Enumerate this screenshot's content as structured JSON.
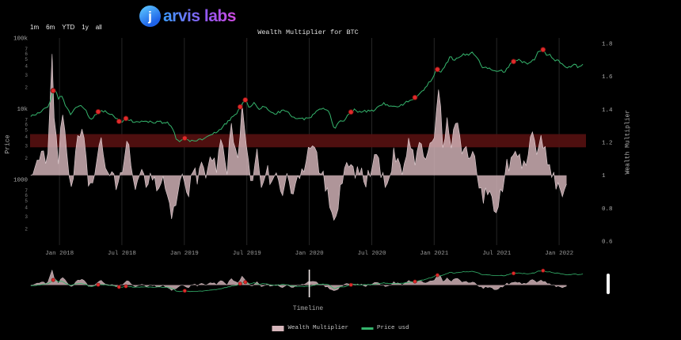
{
  "brand": {
    "mark": "j",
    "name": "arvis labs"
  },
  "toolbar": {
    "ranges": [
      "1m",
      "6m",
      "YTD",
      "1y",
      "all"
    ]
  },
  "chart_data": {
    "type": "line",
    "title": "Wealth Multiplier for BTC",
    "timeline_label": "Timeline",
    "x_domain": [
      2017.765,
      2022.215
    ],
    "x_ticks": [
      {
        "t": 2018.0,
        "label": "Jan 2018"
      },
      {
        "t": 2018.5,
        "label": "Jul 2018"
      },
      {
        "t": 2019.0,
        "label": "Jan 2019"
      },
      {
        "t": 2019.5,
        "label": "Jul 2019"
      },
      {
        "t": 2020.0,
        "label": "Jan 2020"
      },
      {
        "t": 2020.5,
        "label": "Jul 2020"
      },
      {
        "t": 2021.0,
        "label": "Jan 2021"
      },
      {
        "t": 2021.5,
        "label": "Jul 2021"
      },
      {
        "t": 2022.0,
        "label": "Jan 2022"
      }
    ],
    "left_axis": {
      "label": "Price",
      "scale": "log",
      "majors": [
        {
          "v": 100000,
          "label": "100k"
        },
        {
          "v": 10000,
          "label": "10k"
        },
        {
          "v": 1000,
          "label": "1000"
        }
      ],
      "minor_multipliers": [
        8,
        7,
        6,
        5,
        4,
        3,
        2
      ]
    },
    "right_axis": {
      "label": "Wealth Multiplier",
      "ticks": [
        1.8,
        1.6,
        1.4,
        1.2,
        1,
        0.8,
        0.6
      ]
    },
    "threshold_band": {
      "axis": "right",
      "from": 1.17,
      "to": 1.25,
      "color": "#521010"
    },
    "navigator": {
      "marker_t": 2020.0
    },
    "signals": {
      "color": "#df2b2b",
      "times": [
        2017.95,
        2018.31,
        2018.48,
        2018.53,
        2019.0,
        2019.45,
        2019.49,
        2020.33,
        2020.84,
        2021.02,
        2021.63,
        2021.87
      ]
    },
    "series": [
      {
        "name": "Wealth Multiplier",
        "axis": "right",
        "type": "area",
        "baseline": 1,
        "color": "#d6b6bb",
        "points": [
          [
            2017.77,
            1.0
          ],
          [
            2017.82,
            1.06
          ],
          [
            2017.87,
            1.02
          ],
          [
            2017.91,
            1.14
          ],
          [
            2017.94,
            1.74
          ],
          [
            2017.96,
            1.32
          ],
          [
            2017.99,
            1.14
          ],
          [
            2018.03,
            1.35
          ],
          [
            2018.06,
            1.1
          ],
          [
            2018.1,
            0.92
          ],
          [
            2018.14,
            1.18
          ],
          [
            2018.18,
            1.3
          ],
          [
            2018.22,
            1.02
          ],
          [
            2018.26,
            0.9
          ],
          [
            2018.3,
            1.12
          ],
          [
            2018.34,
            1.25
          ],
          [
            2018.38,
            0.96
          ],
          [
            2018.42,
            1.06
          ],
          [
            2018.46,
            0.9
          ],
          [
            2018.5,
            1.0
          ],
          [
            2018.54,
            1.26
          ],
          [
            2018.58,
            0.97
          ],
          [
            2018.62,
            0.92
          ],
          [
            2018.66,
            1.08
          ],
          [
            2018.7,
            0.95
          ],
          [
            2018.74,
            1.02
          ],
          [
            2018.78,
            0.94
          ],
          [
            2018.82,
            1.0
          ],
          [
            2018.86,
            0.88
          ],
          [
            2018.9,
            0.76
          ],
          [
            2018.94,
            0.85
          ],
          [
            2018.98,
            1.0
          ],
          [
            2019.02,
            0.92
          ],
          [
            2019.06,
            1.08
          ],
          [
            2019.1,
            0.97
          ],
          [
            2019.14,
            1.1
          ],
          [
            2019.18,
            1.0
          ],
          [
            2019.22,
            1.14
          ],
          [
            2019.26,
            1.03
          ],
          [
            2019.3,
            1.24
          ],
          [
            2019.34,
            1.0
          ],
          [
            2019.38,
            1.34
          ],
          [
            2019.42,
            1.06
          ],
          [
            2019.46,
            1.4
          ],
          [
            2019.5,
            1.12
          ],
          [
            2019.54,
            0.96
          ],
          [
            2019.58,
            1.18
          ],
          [
            2019.62,
            0.94
          ],
          [
            2019.66,
            1.08
          ],
          [
            2019.7,
            0.92
          ],
          [
            2019.74,
            1.0
          ],
          [
            2019.78,
            0.9
          ],
          [
            2019.82,
            1.0
          ],
          [
            2019.86,
            0.9
          ],
          [
            2019.9,
            0.97
          ],
          [
            2019.94,
            1.02
          ],
          [
            2019.98,
            1.08
          ],
          [
            2020.02,
            1.24
          ],
          [
            2020.06,
            1.1
          ],
          [
            2020.1,
            1.02
          ],
          [
            2020.14,
            0.92
          ],
          [
            2020.18,
            0.8
          ],
          [
            2020.21,
            0.7
          ],
          [
            2020.25,
            0.95
          ],
          [
            2020.29,
            1.04
          ],
          [
            2020.33,
            1.12
          ],
          [
            2020.37,
            0.98
          ],
          [
            2020.41,
            1.06
          ],
          [
            2020.45,
            0.96
          ],
          [
            2020.49,
            1.02
          ],
          [
            2020.53,
            1.2
          ],
          [
            2020.57,
            1.04
          ],
          [
            2020.61,
            0.96
          ],
          [
            2020.65,
            1.02
          ],
          [
            2020.69,
            1.1
          ],
          [
            2020.73,
            1.02
          ],
          [
            2020.77,
            1.14
          ],
          [
            2020.81,
            1.2
          ],
          [
            2020.85,
            1.06
          ],
          [
            2020.89,
            1.22
          ],
          [
            2020.93,
            1.1
          ],
          [
            2020.97,
            1.2
          ],
          [
            2021.01,
            1.3
          ],
          [
            2021.04,
            1.52
          ],
          [
            2021.07,
            1.18
          ],
          [
            2021.1,
            1.34
          ],
          [
            2021.13,
            1.12
          ],
          [
            2021.16,
            1.26
          ],
          [
            2021.19,
            1.34
          ],
          [
            2021.22,
            1.12
          ],
          [
            2021.25,
            1.22
          ],
          [
            2021.28,
            1.1
          ],
          [
            2021.31,
            1.2
          ],
          [
            2021.34,
            0.98
          ],
          [
            2021.38,
            0.88
          ],
          [
            2021.42,
            0.94
          ],
          [
            2021.46,
            0.86
          ],
          [
            2021.5,
            0.8
          ],
          [
            2021.54,
            0.92
          ],
          [
            2021.58,
            1.02
          ],
          [
            2021.62,
            1.12
          ],
          [
            2021.66,
            1.18
          ],
          [
            2021.7,
            1.02
          ],
          [
            2021.74,
            1.1
          ],
          [
            2021.78,
            1.24
          ],
          [
            2021.82,
            1.16
          ],
          [
            2021.86,
            1.22
          ],
          [
            2021.9,
            1.12
          ],
          [
            2021.94,
            1.0
          ],
          [
            2021.98,
            0.94
          ],
          [
            2022.02,
            0.9
          ],
          [
            2022.06,
            0.96
          ]
        ]
      },
      {
        "name": "Price usd",
        "axis": "left",
        "type": "line",
        "color": "#35b56d",
        "points": [
          [
            2017.77,
            7800
          ],
          [
            2017.82,
            8300
          ],
          [
            2017.88,
            9800
          ],
          [
            2017.92,
            11500
          ],
          [
            2017.96,
            19500
          ],
          [
            2017.99,
            13800
          ],
          [
            2018.02,
            15200
          ],
          [
            2018.05,
            11000
          ],
          [
            2018.09,
            8300
          ],
          [
            2018.13,
            10300
          ],
          [
            2018.16,
            11200
          ],
          [
            2018.2,
            9900
          ],
          [
            2018.25,
            7100
          ],
          [
            2018.29,
            8200
          ],
          [
            2018.33,
            9300
          ],
          [
            2018.37,
            9300
          ],
          [
            2018.41,
            8400
          ],
          [
            2018.45,
            7500
          ],
          [
            2018.49,
            6300
          ],
          [
            2018.53,
            7400
          ],
          [
            2018.57,
            6800
          ],
          [
            2018.61,
            6300
          ],
          [
            2018.65,
            6500
          ],
          [
            2018.7,
            6700
          ],
          [
            2018.75,
            6300
          ],
          [
            2018.8,
            6500
          ],
          [
            2018.84,
            6400
          ],
          [
            2018.87,
            6300
          ],
          [
            2018.9,
            5600
          ],
          [
            2018.93,
            3900
          ],
          [
            2018.96,
            3300
          ],
          [
            2019.0,
            3800
          ],
          [
            2019.04,
            3500
          ],
          [
            2019.09,
            3600
          ],
          [
            2019.14,
            3700
          ],
          [
            2019.19,
            4000
          ],
          [
            2019.24,
            4500
          ],
          [
            2019.29,
            5200
          ],
          [
            2019.34,
            6400
          ],
          [
            2019.38,
            7400
          ],
          [
            2019.42,
            8500
          ],
          [
            2019.46,
            11300
          ],
          [
            2019.49,
            13100
          ],
          [
            2019.52,
            10300
          ],
          [
            2019.56,
            11900
          ],
          [
            2019.6,
            10100
          ],
          [
            2019.64,
            10800
          ],
          [
            2019.68,
            9500
          ],
          [
            2019.72,
            8200
          ],
          [
            2019.76,
            9000
          ],
          [
            2019.8,
            9500
          ],
          [
            2019.84,
            8500
          ],
          [
            2019.88,
            7300
          ],
          [
            2019.92,
            7500
          ],
          [
            2019.96,
            7200
          ],
          [
            2020.0,
            7200
          ],
          [
            2020.04,
            8800
          ],
          [
            2020.08,
            9600
          ],
          [
            2020.12,
            10100
          ],
          [
            2020.16,
            8900
          ],
          [
            2020.2,
            4900
          ],
          [
            2020.24,
            6700
          ],
          [
            2020.28,
            6900
          ],
          [
            2020.32,
            8800
          ],
          [
            2020.36,
            9600
          ],
          [
            2020.4,
            9000
          ],
          [
            2020.44,
            9200
          ],
          [
            2020.48,
            9300
          ],
          [
            2020.52,
            9200
          ],
          [
            2020.56,
            11400
          ],
          [
            2020.6,
            11800
          ],
          [
            2020.64,
            11100
          ],
          [
            2020.68,
            10500
          ],
          [
            2020.72,
            10800
          ],
          [
            2020.76,
            11700
          ],
          [
            2020.8,
            13100
          ],
          [
            2020.84,
            13600
          ],
          [
            2020.88,
            16200
          ],
          [
            2020.92,
            18800
          ],
          [
            2020.96,
            23500
          ],
          [
            2021.0,
            29400
          ],
          [
            2021.02,
            38200
          ],
          [
            2021.05,
            31500
          ],
          [
            2021.08,
            38000
          ],
          [
            2021.11,
            46500
          ],
          [
            2021.13,
            57400
          ],
          [
            2021.16,
            46800
          ],
          [
            2021.19,
            52200
          ],
          [
            2021.22,
            58000
          ],
          [
            2021.25,
            58800
          ],
          [
            2021.28,
            54500
          ],
          [
            2021.3,
            63200
          ],
          [
            2021.33,
            55000
          ],
          [
            2021.36,
            46000
          ],
          [
            2021.39,
            36800
          ],
          [
            2021.43,
            37600
          ],
          [
            2021.47,
            34200
          ],
          [
            2021.5,
            32500
          ],
          [
            2021.53,
            35300
          ],
          [
            2021.56,
            31900
          ],
          [
            2021.6,
            40500
          ],
          [
            2021.64,
            46400
          ],
          [
            2021.68,
            49200
          ],
          [
            2021.72,
            44600
          ],
          [
            2021.76,
            43800
          ],
          [
            2021.8,
            49300
          ],
          [
            2021.83,
            61400
          ],
          [
            2021.87,
            66900
          ],
          [
            2021.9,
            58100
          ],
          [
            2021.93,
            57400
          ],
          [
            2021.96,
            48900
          ],
          [
            2022.0,
            47100
          ],
          [
            2022.03,
            42700
          ],
          [
            2022.06,
            36900
          ],
          [
            2022.09,
            38600
          ],
          [
            2022.12,
            43900
          ],
          [
            2022.15,
            39300
          ],
          [
            2022.19,
            41000
          ]
        ]
      }
    ]
  }
}
